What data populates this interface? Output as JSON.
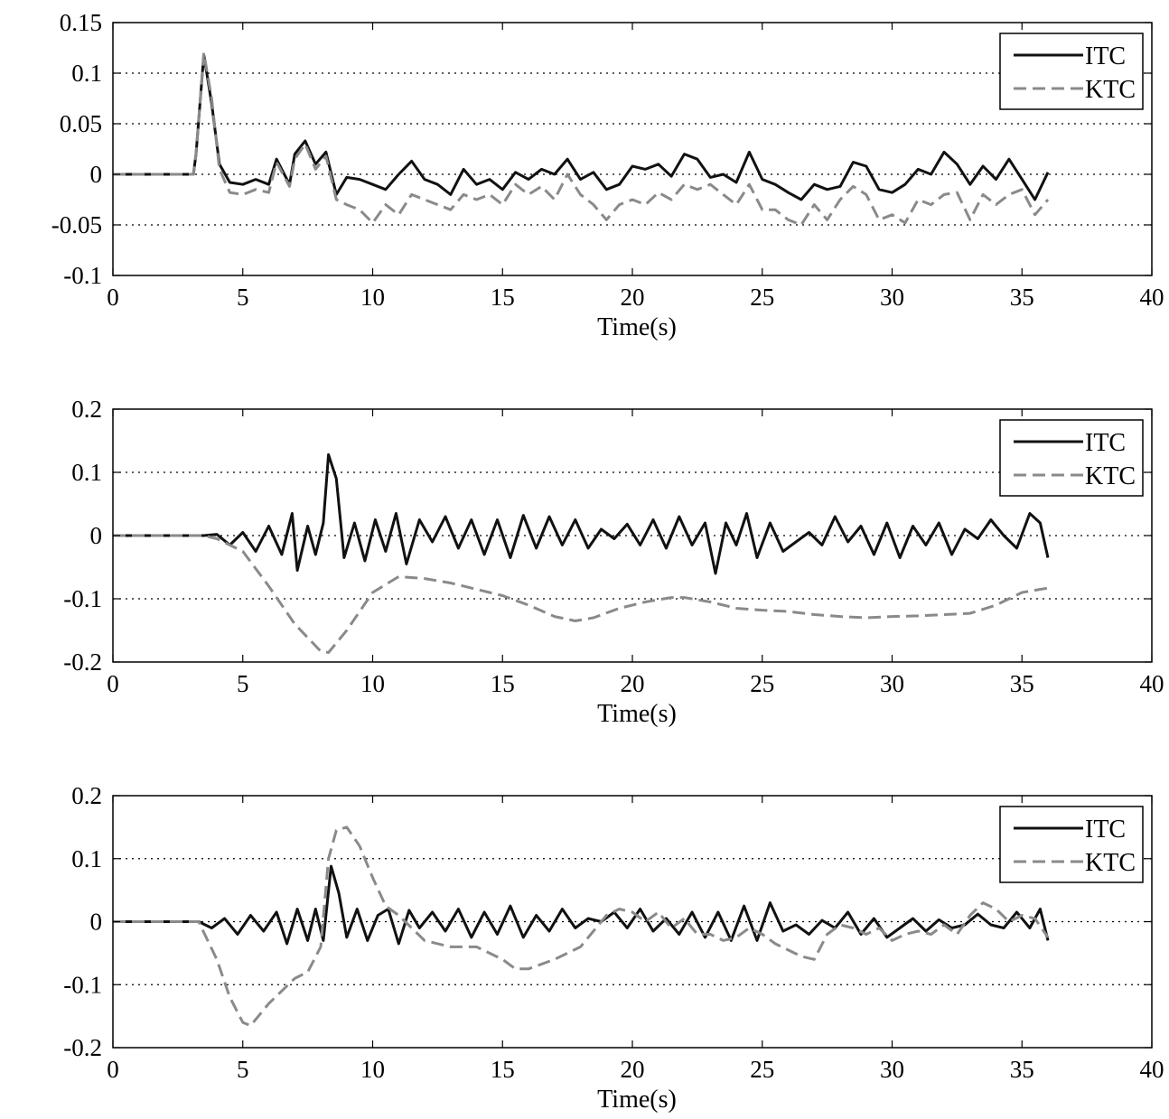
{
  "chart_data": [
    {
      "type": "line",
      "xlabel": "Time(s)",
      "ylabel": "",
      "xlim": [
        0,
        40
      ],
      "ylim": [
        -0.1,
        0.15
      ],
      "xticks": [
        0,
        5,
        10,
        15,
        20,
        25,
        30,
        35,
        40
      ],
      "xtick_labels": [
        "0",
        "5",
        "10",
        "15",
        "20",
        "25",
        "30",
        "35",
        "40"
      ],
      "yticks": [
        -0.1,
        -0.05,
        0,
        0.05,
        0.1,
        0.15
      ],
      "ytick_labels": [
        "-0.1",
        "-0.05",
        "0",
        "0.05",
        "0.1",
        "0.15"
      ],
      "grid": "horizontal dotted",
      "legend_position": "top-right",
      "series": [
        {
          "name": "ITC",
          "color": "#111111",
          "style": "solid",
          "x": [
            0,
            3.1,
            3.2,
            3.5,
            3.8,
            4.1,
            4.5,
            5.0,
            5.5,
            6.0,
            6.3,
            6.8,
            7.0,
            7.4,
            7.8,
            8.2,
            8.6,
            9.0,
            9.5,
            10.0,
            10.5,
            11.0,
            11.5,
            12.0,
            12.5,
            13.0,
            13.5,
            14.0,
            14.5,
            15.0,
            15.5,
            16.0,
            16.5,
            17.0,
            17.5,
            18.0,
            18.5,
            19.0,
            19.5,
            20.0,
            20.5,
            21.0,
            21.5,
            22.0,
            22.5,
            23.0,
            23.5,
            24.0,
            24.5,
            25.0,
            25.5,
            26.0,
            26.5,
            27.0,
            27.5,
            28.0,
            28.5,
            29.0,
            29.5,
            30.0,
            30.5,
            31.0,
            31.5,
            32.0,
            32.5,
            33.0,
            33.5,
            34.0,
            34.5,
            35.0,
            35.5,
            36.0
          ],
          "y": [
            0,
            0,
            0.02,
            0.118,
            0.07,
            0.01,
            -0.008,
            -0.01,
            -0.005,
            -0.01,
            0.015,
            -0.01,
            0.02,
            0.033,
            0.01,
            0.022,
            -0.02,
            -0.003,
            -0.005,
            -0.01,
            -0.015,
            0.0,
            0.013,
            -0.005,
            -0.01,
            -0.02,
            0.005,
            -0.01,
            -0.005,
            -0.015,
            0.002,
            -0.005,
            0.005,
            0.0,
            0.015,
            -0.005,
            0.002,
            -0.015,
            -0.01,
            0.008,
            0.005,
            0.01,
            -0.002,
            0.02,
            0.015,
            -0.003,
            0.0,
            -0.008,
            0.022,
            -0.005,
            -0.01,
            -0.018,
            -0.025,
            -0.01,
            -0.015,
            -0.012,
            0.012,
            0.008,
            -0.015,
            -0.018,
            -0.01,
            0.005,
            0.0,
            0.022,
            0.01,
            -0.01,
            0.008,
            -0.005,
            0.015,
            -0.005,
            -0.025,
            0.002
          ]
        },
        {
          "name": "KTC",
          "color": "#8a8a8a",
          "style": "dashed",
          "x": [
            0,
            3.1,
            3.2,
            3.5,
            3.8,
            4.1,
            4.5,
            5.0,
            5.5,
            6.0,
            6.3,
            6.8,
            7.0,
            7.4,
            7.8,
            8.2,
            8.6,
            9.0,
            9.5,
            10.0,
            10.5,
            11.0,
            11.5,
            12.0,
            12.5,
            13.0,
            13.5,
            14.0,
            14.5,
            15.0,
            15.5,
            16.0,
            16.5,
            17.0,
            17.5,
            18.0,
            18.5,
            19.0,
            19.5,
            20.0,
            20.5,
            21.0,
            21.5,
            22.0,
            22.5,
            23.0,
            23.5,
            24.0,
            24.5,
            25.0,
            25.5,
            26.0,
            26.5,
            27.0,
            27.5,
            28.0,
            28.5,
            29.0,
            29.5,
            30.0,
            30.5,
            31.0,
            31.5,
            32.0,
            32.5,
            33.0,
            33.5,
            34.0,
            34.5,
            35.0,
            35.5,
            36.0
          ],
          "y": [
            0,
            0,
            0.02,
            0.12,
            0.075,
            0.005,
            -0.018,
            -0.02,
            -0.015,
            -0.018,
            0.012,
            -0.012,
            0.015,
            0.03,
            0.005,
            0.018,
            -0.025,
            -0.03,
            -0.035,
            -0.048,
            -0.03,
            -0.04,
            -0.02,
            -0.025,
            -0.03,
            -0.035,
            -0.02,
            -0.025,
            -0.02,
            -0.03,
            -0.01,
            -0.02,
            -0.012,
            -0.025,
            0.0,
            -0.02,
            -0.03,
            -0.045,
            -0.03,
            -0.025,
            -0.03,
            -0.018,
            -0.025,
            -0.01,
            -0.015,
            -0.01,
            -0.02,
            -0.03,
            -0.01,
            -0.035,
            -0.035,
            -0.045,
            -0.05,
            -0.03,
            -0.045,
            -0.025,
            -0.012,
            -0.02,
            -0.045,
            -0.04,
            -0.048,
            -0.025,
            -0.03,
            -0.02,
            -0.018,
            -0.045,
            -0.02,
            -0.03,
            -0.02,
            -0.015,
            -0.04,
            -0.025
          ]
        }
      ]
    },
    {
      "type": "line",
      "xlabel": "Time(s)",
      "ylabel": "",
      "xlim": [
        0,
        40
      ],
      "ylim": [
        -0.2,
        0.2
      ],
      "xticks": [
        0,
        5,
        10,
        15,
        20,
        25,
        30,
        35,
        40
      ],
      "xtick_labels": [
        "0",
        "5",
        "10",
        "15",
        "20",
        "25",
        "30",
        "35",
        "40"
      ],
      "yticks": [
        -0.2,
        -0.1,
        0,
        0.1,
        0.2
      ],
      "ytick_labels": [
        "-0.2",
        "-0.1",
        "0",
        "0.1",
        "0.2"
      ],
      "grid": "horizontal dotted",
      "legend_position": "top-right",
      "series": [
        {
          "name": "ITC",
          "color": "#111111",
          "style": "solid",
          "x": [
            0,
            3.5,
            4.0,
            4.5,
            5.0,
            5.5,
            6.0,
            6.5,
            6.9,
            7.1,
            7.5,
            7.8,
            8.1,
            8.3,
            8.6,
            8.9,
            9.3,
            9.7,
            10.1,
            10.5,
            10.9,
            11.3,
            11.8,
            12.3,
            12.8,
            13.3,
            13.8,
            14.3,
            14.8,
            15.3,
            15.8,
            16.3,
            16.8,
            17.3,
            17.8,
            18.3,
            18.8,
            19.3,
            19.8,
            20.3,
            20.8,
            21.3,
            21.8,
            22.3,
            22.8,
            23.2,
            23.6,
            24.0,
            24.4,
            24.8,
            25.3,
            25.8,
            26.3,
            26.8,
            27.3,
            27.8,
            28.3,
            28.8,
            29.3,
            29.8,
            30.3,
            30.8,
            31.3,
            31.8,
            32.3,
            32.8,
            33.3,
            33.8,
            34.3,
            34.8,
            35.3,
            35.7,
            36.0
          ],
          "y": [
            0,
            0,
            0.002,
            -0.015,
            0.005,
            -0.025,
            0.015,
            -0.03,
            0.035,
            -0.055,
            0.015,
            -0.03,
            0.02,
            0.128,
            0.09,
            -0.035,
            0.02,
            -0.04,
            0.025,
            -0.025,
            0.035,
            -0.045,
            0.025,
            -0.01,
            0.03,
            -0.02,
            0.025,
            -0.03,
            0.025,
            -0.035,
            0.032,
            -0.02,
            0.03,
            -0.015,
            0.025,
            -0.02,
            0.01,
            -0.005,
            0.018,
            -0.015,
            0.025,
            -0.02,
            0.03,
            -0.015,
            0.02,
            -0.06,
            0.02,
            -0.015,
            0.035,
            -0.035,
            0.02,
            -0.025,
            -0.01,
            0.005,
            -0.015,
            0.03,
            -0.01,
            0.015,
            -0.03,
            0.02,
            -0.035,
            0.015,
            -0.015,
            0.02,
            -0.03,
            0.01,
            -0.005,
            0.025,
            0.0,
            -0.02,
            0.035,
            0.02,
            -0.035
          ]
        },
        {
          "name": "KTC",
          "color": "#8a8a8a",
          "style": "dashed",
          "x": [
            0,
            3.5,
            4.0,
            5.0,
            6.0,
            7.0,
            8.0,
            8.3,
            9.0,
            10.0,
            11.0,
            12.0,
            13.0,
            14.0,
            15.0,
            16.0,
            17.0,
            17.8,
            18.5,
            19.5,
            20.5,
            21.5,
            22.0,
            23.0,
            24.0,
            25.0,
            26.0,
            27.0,
            28.0,
            29.0,
            30.0,
            31.0,
            32.0,
            33.0,
            34.0,
            35.0,
            36.0
          ],
          "y": [
            0,
            0,
            -0.005,
            -0.025,
            -0.08,
            -0.14,
            -0.183,
            -0.185,
            -0.15,
            -0.09,
            -0.065,
            -0.068,
            -0.075,
            -0.085,
            -0.095,
            -0.11,
            -0.128,
            -0.135,
            -0.13,
            -0.115,
            -0.105,
            -0.098,
            -0.098,
            -0.105,
            -0.115,
            -0.118,
            -0.12,
            -0.125,
            -0.128,
            -0.13,
            -0.128,
            -0.127,
            -0.125,
            -0.123,
            -0.11,
            -0.09,
            -0.083
          ]
        }
      ]
    },
    {
      "type": "line",
      "xlabel": "Time(s)",
      "ylabel": "",
      "xlim": [
        0,
        40
      ],
      "ylim": [
        -0.2,
        0.2
      ],
      "xticks": [
        0,
        5,
        10,
        15,
        20,
        25,
        30,
        35,
        40
      ],
      "xtick_labels": [
        "0",
        "5",
        "10",
        "15",
        "20",
        "25",
        "30",
        "35",
        "40"
      ],
      "yticks": [
        -0.2,
        -0.1,
        0,
        0.1,
        0.2
      ],
      "ytick_labels": [
        "-0.2",
        "-0.1",
        "0",
        "0.1",
        "0.2"
      ],
      "grid": "horizontal dotted",
      "legend_position": "top-right",
      "series": [
        {
          "name": "ITC",
          "color": "#111111",
          "style": "solid",
          "x": [
            0,
            3.3,
            3.8,
            4.3,
            4.8,
            5.3,
            5.8,
            6.3,
            6.7,
            7.1,
            7.5,
            7.8,
            8.1,
            8.4,
            8.7,
            9.0,
            9.4,
            9.8,
            10.2,
            10.6,
            11.0,
            11.4,
            11.8,
            12.3,
            12.8,
            13.3,
            13.8,
            14.3,
            14.8,
            15.3,
            15.8,
            16.3,
            16.8,
            17.3,
            17.8,
            18.3,
            18.8,
            19.3,
            19.8,
            20.3,
            20.8,
            21.3,
            21.8,
            22.3,
            22.8,
            23.3,
            23.8,
            24.3,
            24.8,
            25.3,
            25.8,
            26.3,
            26.8,
            27.3,
            27.8,
            28.3,
            28.8,
            29.3,
            29.8,
            30.3,
            30.8,
            31.3,
            31.8,
            32.3,
            32.8,
            33.3,
            33.8,
            34.3,
            34.8,
            35.3,
            35.7,
            36.0
          ],
          "y": [
            0,
            0,
            -0.01,
            0.005,
            -0.02,
            0.01,
            -0.015,
            0.015,
            -0.035,
            0.02,
            -0.03,
            0.02,
            -0.03,
            0.088,
            0.045,
            -0.025,
            0.02,
            -0.03,
            0.01,
            0.02,
            -0.035,
            0.018,
            -0.01,
            0.015,
            -0.015,
            0.02,
            -0.025,
            0.015,
            -0.02,
            0.025,
            -0.025,
            0.01,
            -0.015,
            0.02,
            -0.01,
            0.005,
            0.0,
            0.015,
            -0.01,
            0.02,
            -0.015,
            0.005,
            -0.02,
            0.015,
            -0.025,
            0.015,
            -0.03,
            0.025,
            -0.03,
            0.03,
            -0.015,
            -0.005,
            -0.02,
            0.002,
            -0.01,
            0.015,
            -0.02,
            0.005,
            -0.025,
            -0.01,
            0.005,
            -0.015,
            0.003,
            -0.01,
            -0.005,
            0.012,
            -0.005,
            -0.01,
            0.015,
            -0.01,
            0.02,
            -0.03
          ]
        },
        {
          "name": "KTC",
          "color": "#8a8a8a",
          "style": "dashed",
          "x": [
            0,
            3.3,
            4.0,
            4.5,
            5.0,
            5.3,
            6.0,
            6.5,
            7.0,
            7.5,
            8.0,
            8.3,
            8.6,
            9.0,
            9.5,
            10.0,
            10.5,
            11.0,
            12.0,
            13.0,
            14.0,
            15.0,
            15.5,
            16.0,
            17.0,
            18.0,
            18.5,
            19.0,
            19.5,
            20.0,
            20.5,
            21.0,
            21.5,
            22.0,
            22.5,
            23.0,
            23.5,
            24.0,
            24.5,
            25.0,
            25.5,
            26.0,
            26.5,
            27.0,
            27.5,
            28.0,
            28.5,
            29.0,
            29.5,
            30.0,
            30.5,
            31.0,
            31.5,
            32.0,
            32.5,
            33.0,
            33.5,
            34.0,
            34.5,
            35.0,
            35.5,
            36.0
          ],
          "y": [
            0,
            0,
            -0.06,
            -0.12,
            -0.16,
            -0.165,
            -0.13,
            -0.11,
            -0.09,
            -0.08,
            -0.04,
            0.1,
            0.145,
            0.15,
            0.12,
            0.07,
            0.025,
            0.01,
            -0.03,
            -0.04,
            -0.04,
            -0.06,
            -0.075,
            -0.075,
            -0.06,
            -0.04,
            -0.015,
            0.01,
            0.02,
            0.015,
            0.0,
            0.015,
            -0.01,
            0.005,
            -0.02,
            -0.02,
            -0.03,
            -0.025,
            -0.01,
            -0.02,
            -0.035,
            -0.045,
            -0.055,
            -0.06,
            -0.02,
            -0.005,
            -0.01,
            -0.02,
            -0.01,
            -0.03,
            -0.02,
            -0.015,
            -0.02,
            -0.005,
            -0.02,
            0.01,
            0.03,
            0.02,
            0.0,
            0.01,
            0.005,
            -0.025
          ]
        }
      ]
    }
  ]
}
